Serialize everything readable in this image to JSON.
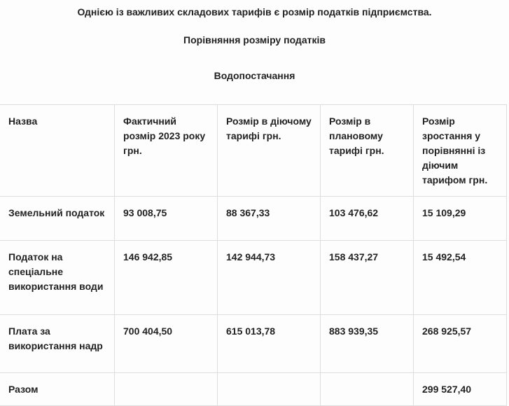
{
  "intro": "Однією із важливих складових тарифів є розмір податків підприємства.",
  "subtitle": "Порівняння розміру податків",
  "section": "Водопостачання",
  "table": {
    "headers": [
      "Назва",
      "Фактичний розмір 2023 року грн.",
      "Розмір в діючому тарифі грн.",
      "Розмір в плановому тарифі  грн.",
      "Розмір зростання у порівнянні із діючим тарифом грн."
    ],
    "rows": [
      [
        "Земельний податок",
        "93 008,75",
        "88 367,33",
        "103 476,62",
        "15 109,29"
      ],
      [
        "Податок на спеціальне використання води",
        "146 942,85",
        "142 944,73",
        "158 437,27",
        "15 492,54"
      ],
      [
        "Плата за використання надр",
        "700 404,50",
        "615 013,78",
        "883 939,35",
        "268 925,57"
      ],
      [
        "Разом",
        "",
        "",
        "",
        "299 527,40"
      ]
    ]
  }
}
